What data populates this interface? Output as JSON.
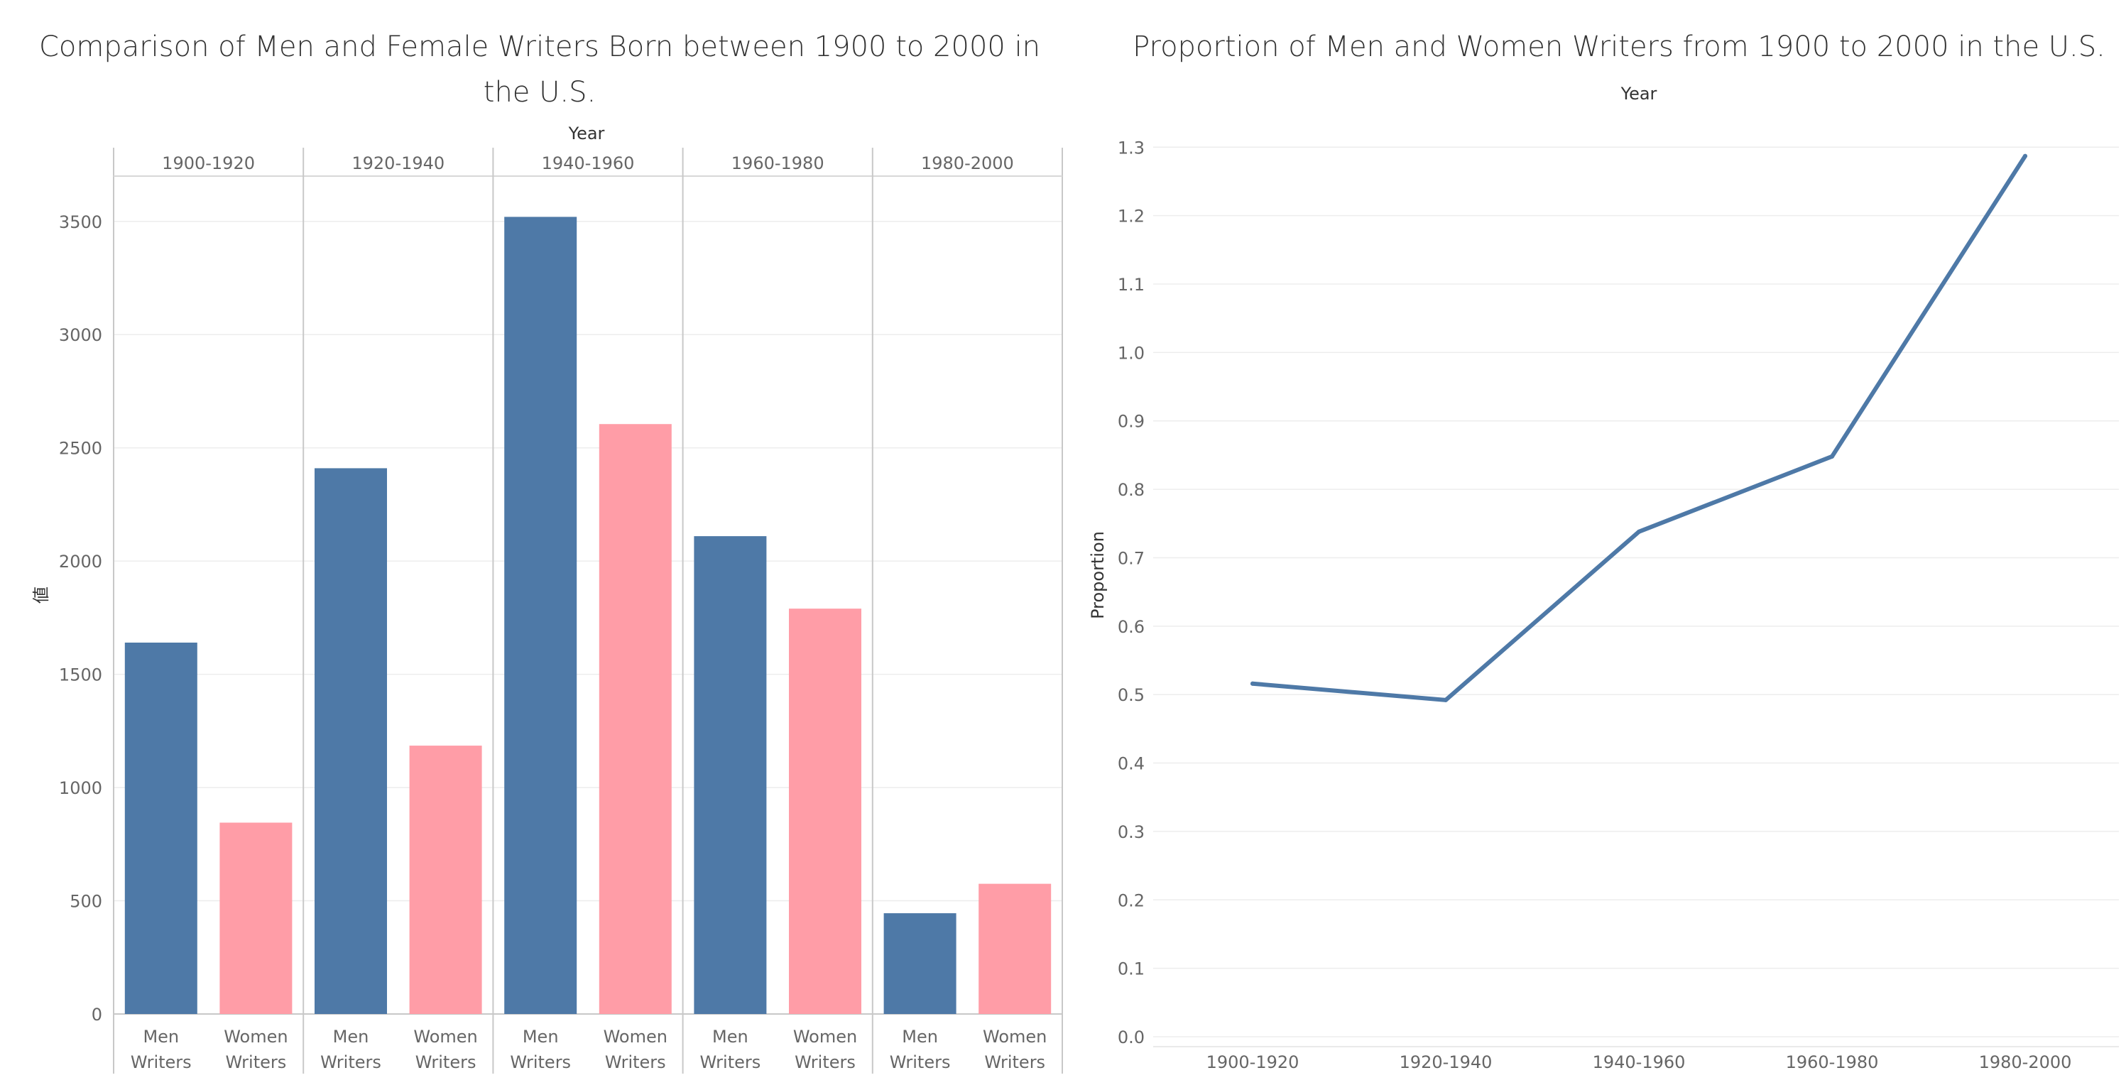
{
  "charts": {
    "left_title": "Comparison of Men and Female Writers Born between 1900 to 2000 in the U.S.",
    "right_title": "Proportion of Men and Women Writers from 1900 to 2000 in the U.S."
  },
  "chart_data": [
    {
      "type": "bar",
      "title": "Comparison of Men and Female Writers Born between 1900 to 2000 in the U.S.",
      "column_header": "Year",
      "ylabel": "値",
      "categories": [
        "1900-1920",
        "1920-1940",
        "1940-1960",
        "1960-1980",
        "1980-2000"
      ],
      "subcategories": [
        "Men Writers",
        "Women Writers"
      ],
      "series": [
        {
          "name": "Men Writers",
          "values": [
            1640,
            2410,
            3520,
            2110,
            445
          ]
        },
        {
          "name": "Women Writers",
          "values": [
            845,
            1185,
            2605,
            1790,
            575
          ]
        }
      ],
      "ylim": [
        0,
        3700
      ],
      "yticks": [
        0,
        500,
        1000,
        1500,
        2000,
        2500,
        3000,
        3500
      ],
      "colors": {
        "Men Writers": "#4e79a7",
        "Women Writers": "#ff9da7"
      },
      "grid": true
    },
    {
      "type": "line",
      "title": "Proportion of Men and Women Writers from 1900 to 2000 in the U.S.",
      "column_header": "Year",
      "ylabel": "Proportion",
      "x": [
        "1900-1920",
        "1920-1940",
        "1940-1960",
        "1960-1980",
        "1980-2000"
      ],
      "values": [
        0.516,
        0.492,
        0.738,
        0.848,
        1.287
      ],
      "ylim": [
        0,
        1.32
      ],
      "yticks": [
        0.0,
        0.1,
        0.2,
        0.3,
        0.4,
        0.5,
        0.6,
        0.7,
        0.8,
        0.9,
        1.0,
        1.1,
        1.2,
        1.3
      ],
      "color": "#4e79a7",
      "grid": true
    }
  ]
}
